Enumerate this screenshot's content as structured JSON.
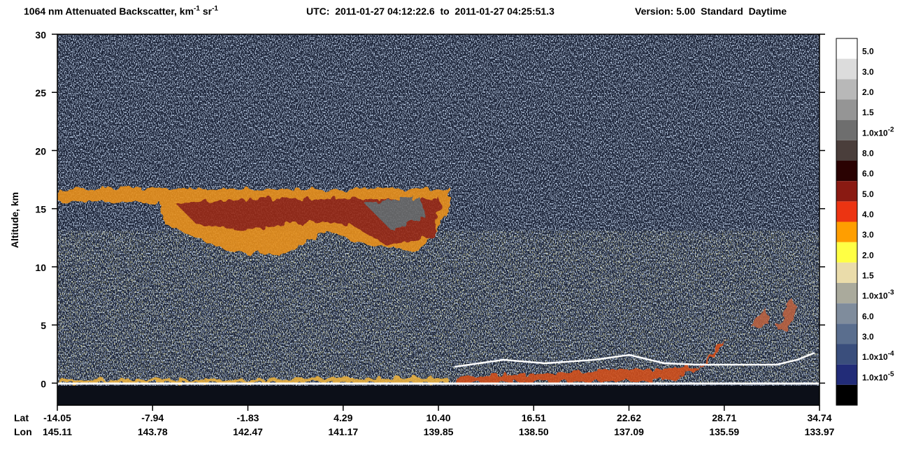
{
  "chart_data": {
    "type": "heatmap",
    "title": "1064 nm Attenuated Backscatter, km",
    "title_exp_1": "-1",
    "title_unit_2": " sr",
    "title_exp_2": "-1",
    "title_utc": "UTC:  2011-01-27 04:12:22.6  to  2011-01-27 04:25:51.3",
    "title_version": "Version: 5.00  Standard  Daytime",
    "ylabel": "Altitude, km",
    "ylim": [
      -1.9,
      30
    ],
    "yticks": [
      0,
      5,
      10,
      15,
      20,
      25,
      30
    ],
    "lat_label": "Lat",
    "lon_label": "Lon",
    "x_lat": [
      "-14.05",
      "-7.94",
      "-1.83",
      "4.29",
      "10.40",
      "16.51",
      "22.62",
      "28.71",
      "34.74"
    ],
    "x_lon": [
      "145.11",
      "143.78",
      "142.47",
      "141.17",
      "139.85",
      "138.50",
      "137.09",
      "135.59",
      "133.97"
    ],
    "colorbar_colors": [
      "#ffffff",
      "#dcdcdc",
      "#b8b8b8",
      "#959595",
      "#6e6e6e",
      "#4a3e3b",
      "#2a0202",
      "#8a1a12",
      "#ec3412",
      "#ff9e00",
      "#ffff44",
      "#eadcaa",
      "#aaaa9c",
      "#7f8c9c",
      "#5a6e8e",
      "#3a4e7c",
      "#222c78",
      "#000000"
    ],
    "colorbar_labels": [
      {
        "text": "5.0"
      },
      {
        "text": "3.0"
      },
      {
        "text": "2.0"
      },
      {
        "text": "1.5"
      },
      {
        "text": "1.0x10",
        "exp": "-2"
      },
      {
        "text": "8.0"
      },
      {
        "text": "6.0"
      },
      {
        "text": "5.0"
      },
      {
        "text": "4.0"
      },
      {
        "text": "3.0"
      },
      {
        "text": "2.0"
      },
      {
        "text": "1.5"
      },
      {
        "text": "1.0x10",
        "exp": "-3"
      },
      {
        "text": "6.0"
      },
      {
        "text": "3.0"
      },
      {
        "text": "1.0x10",
        "exp": "-4"
      },
      {
        "text": "1.0x10",
        "exp": "-5"
      }
    ]
  }
}
